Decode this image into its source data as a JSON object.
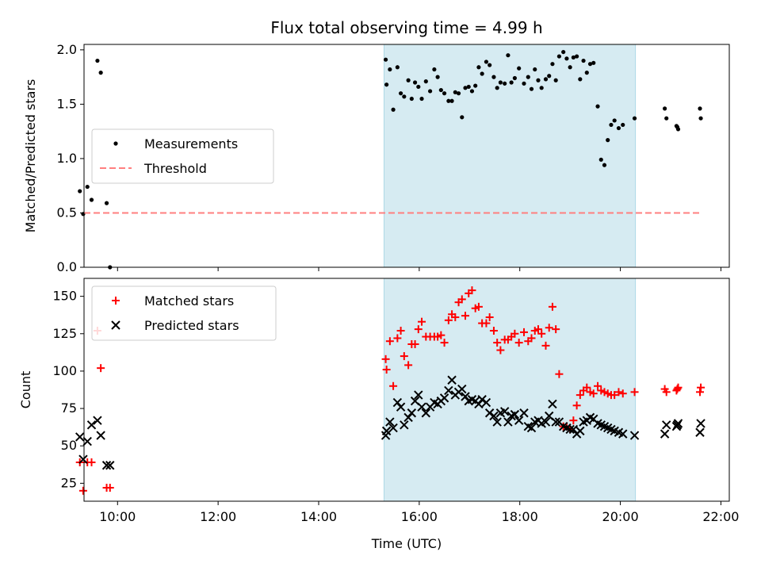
{
  "chart_data": {
    "title": "Flux total observing time = 4.99 h",
    "xlabel": "Time (UTC)",
    "xlim": [
      "09:20",
      "22:10"
    ],
    "xticks": [
      "10:00",
      "12:00",
      "14:00",
      "16:00",
      "18:00",
      "20:00",
      "22:00"
    ],
    "shaded_span": [
      "15:18",
      "20:18"
    ],
    "shade_color": "#add8e6",
    "panels": [
      {
        "type": "scatter",
        "ylabel": "Matched/Predicted stars",
        "ylim": [
          0,
          2.05
        ],
        "yticks": [
          "0.0",
          "0.5",
          "1.0",
          "1.5",
          "2.0"
        ],
        "legend_position": "center-left",
        "series": [
          {
            "name": "Measurements",
            "marker": "dot",
            "color": "#000000",
            "x": [
              "09:15",
              "09:19",
              "09:24",
              "09:29",
              "09:36",
              "09:40",
              "09:47",
              "09:51",
              "15:20",
              "15:21",
              "15:25",
              "15:29",
              "15:34",
              "15:38",
              "15:42",
              "15:47",
              "15:51",
              "15:55",
              "15:59",
              "16:03",
              "16:08",
              "16:13",
              "16:18",
              "16:22",
              "16:26",
              "16:30",
              "16:35",
              "16:39",
              "16:43",
              "16:47",
              "16:51",
              "16:55",
              "16:59",
              "17:03",
              "17:07",
              "17:11",
              "17:15",
              "17:20",
              "17:24",
              "17:29",
              "17:33",
              "17:37",
              "17:42",
              "17:46",
              "17:50",
              "17:54",
              "17:59",
              "18:05",
              "18:10",
              "18:14",
              "18:18",
              "18:22",
              "18:26",
              "18:31",
              "18:35",
              "18:39",
              "18:43",
              "18:47",
              "18:52",
              "18:56",
              "19:00",
              "19:04",
              "19:08",
              "19:12",
              "19:16",
              "19:20",
              "19:24",
              "19:28",
              "19:33",
              "19:37",
              "19:41",
              "19:45",
              "19:49",
              "19:53",
              "19:58",
              "20:03",
              "20:17",
              "20:53",
              "20:55",
              "21:07",
              "21:08",
              "21:09",
              "21:35",
              "21:36"
            ],
            "y": [
              0.7,
              0.49,
              0.74,
              0.62,
              1.9,
              1.79,
              0.59,
              0.0,
              1.91,
              1.68,
              1.82,
              1.45,
              1.84,
              1.6,
              1.57,
              1.72,
              1.55,
              1.7,
              1.66,
              1.55,
              1.71,
              1.62,
              1.82,
              1.75,
              1.63,
              1.6,
              1.53,
              1.53,
              1.61,
              1.6,
              1.38,
              1.65,
              1.66,
              1.62,
              1.67,
              1.84,
              1.78,
              1.89,
              1.86,
              1.75,
              1.65,
              1.7,
              1.69,
              1.95,
              1.7,
              1.74,
              1.83,
              1.69,
              1.75,
              1.64,
              1.82,
              1.72,
              1.65,
              1.73,
              1.76,
              1.87,
              1.72,
              1.94,
              1.98,
              1.92,
              1.84,
              1.93,
              1.94,
              1.73,
              1.9,
              1.79,
              1.87,
              1.88,
              1.48,
              0.99,
              0.94,
              1.17,
              1.31,
              1.35,
              1.28,
              1.31,
              1.37,
              1.46,
              1.37,
              1.3,
              1.29,
              1.27,
              1.46,
              1.37
            ]
          },
          {
            "name": "Threshold",
            "style": "dashed",
            "color": "#ff7f7f",
            "x": [
              "09:20",
              "21:35"
            ],
            "y": [
              0.5,
              0.5
            ]
          }
        ]
      },
      {
        "type": "scatter",
        "ylabel": "Count",
        "ylim": [
          13,
          162
        ],
        "yticks": [
          "25",
          "50",
          "75",
          "100",
          "125",
          "150"
        ],
        "legend_position": "top-left",
        "series": [
          {
            "name": "Matched stars",
            "marker": "plus",
            "color": "#ff0000",
            "x": [
              "09:15",
              "09:19",
              "09:24",
              "09:29",
              "09:36",
              "09:40",
              "09:47",
              "09:51",
              "15:20",
              "15:21",
              "15:25",
              "15:29",
              "15:34",
              "15:38",
              "15:42",
              "15:47",
              "15:51",
              "15:55",
              "15:59",
              "16:03",
              "16:08",
              "16:13",
              "16:18",
              "16:22",
              "16:26",
              "16:30",
              "16:35",
              "16:39",
              "16:43",
              "16:47",
              "16:51",
              "16:55",
              "16:59",
              "17:03",
              "17:07",
              "17:11",
              "17:15",
              "17:20",
              "17:24",
              "17:29",
              "17:33",
              "17:37",
              "17:42",
              "17:46",
              "17:50",
              "17:54",
              "17:59",
              "18:05",
              "18:10",
              "18:14",
              "18:18",
              "18:22",
              "18:26",
              "18:31",
              "18:35",
              "18:39",
              "18:43",
              "18:47",
              "18:52",
              "18:56",
              "19:00",
              "19:04",
              "19:08",
              "19:12",
              "19:16",
              "19:20",
              "19:24",
              "19:28",
              "19:33",
              "19:37",
              "19:41",
              "19:45",
              "19:49",
              "19:53",
              "19:58",
              "20:03",
              "20:17",
              "20:53",
              "20:55",
              "21:07",
              "21:08",
              "21:09",
              "21:35",
              "21:36"
            ],
            "y": [
              39,
              20,
              39,
              39,
              127,
              102,
              22,
              22,
              108,
              101,
              120,
              90,
              122,
              127,
              110,
              104,
              118,
              118,
              128,
              133,
              123,
              123,
              123,
              123,
              124,
              119,
              134,
              138,
              136,
              146,
              148,
              137,
              152,
              154,
              142,
              143,
              132,
              132,
              136,
              127,
              119,
              114,
              121,
              121,
              123,
              125,
              119,
              126,
              120,
              122,
              127,
              128,
              125,
              117,
              129,
              143,
              128,
              98,
              63,
              63,
              61,
              67,
              77,
              84,
              87,
              89,
              86,
              85,
              90,
              87,
              86,
              85,
              84,
              84,
              86,
              85,
              86,
              88,
              86,
              87,
              88,
              89,
              86,
              89
            ]
          },
          {
            "name": "Predicted stars",
            "marker": "x",
            "color": "#000000",
            "x": [
              "09:15",
              "09:19",
              "09:24",
              "09:29",
              "09:36",
              "09:40",
              "09:47",
              "09:51",
              "15:20",
              "15:21",
              "15:25",
              "15:29",
              "15:34",
              "15:38",
              "15:42",
              "15:47",
              "15:51",
              "15:55",
              "15:59",
              "16:03",
              "16:08",
              "16:13",
              "16:18",
              "16:22",
              "16:26",
              "16:30",
              "16:35",
              "16:39",
              "16:43",
              "16:47",
              "16:51",
              "16:55",
              "16:59",
              "17:03",
              "17:07",
              "17:11",
              "17:15",
              "17:20",
              "17:24",
              "17:29",
              "17:33",
              "17:37",
              "17:42",
              "17:46",
              "17:50",
              "17:54",
              "17:59",
              "18:05",
              "18:10",
              "18:14",
              "18:18",
              "18:22",
              "18:26",
              "18:31",
              "18:35",
              "18:39",
              "18:43",
              "18:47",
              "18:52",
              "18:56",
              "19:00",
              "19:04",
              "19:08",
              "19:12",
              "19:16",
              "19:20",
              "19:24",
              "19:28",
              "19:33",
              "19:37",
              "19:41",
              "19:45",
              "19:49",
              "19:53",
              "19:58",
              "20:03",
              "20:17",
              "20:53",
              "20:55",
              "21:07",
              "21:08",
              "21:09",
              "21:35",
              "21:36"
            ],
            "y": [
              56,
              41,
              53,
              64,
              67,
              57,
              37,
              37,
              57,
              60,
              66,
              62,
              79,
              76,
              64,
              69,
              72,
              80,
              84,
              76,
              72,
              76,
              79,
              78,
              80,
              82,
              87,
              94,
              84,
              86,
              88,
              83,
              80,
              81,
              80,
              78,
              81,
              79,
              72,
              70,
              66,
              72,
              73,
              66,
              70,
              71,
              67,
              72,
              63,
              62,
              66,
              67,
              65,
              66,
              70,
              78,
              66,
              66,
              63,
              62,
              61,
              61,
              58,
              60,
              66,
              67,
              69,
              68,
              65,
              64,
              63,
              62,
              61,
              60,
              59,
              58,
              57,
              58,
              64,
              63,
              64,
              65,
              59,
              65
            ]
          }
        ]
      }
    ]
  }
}
